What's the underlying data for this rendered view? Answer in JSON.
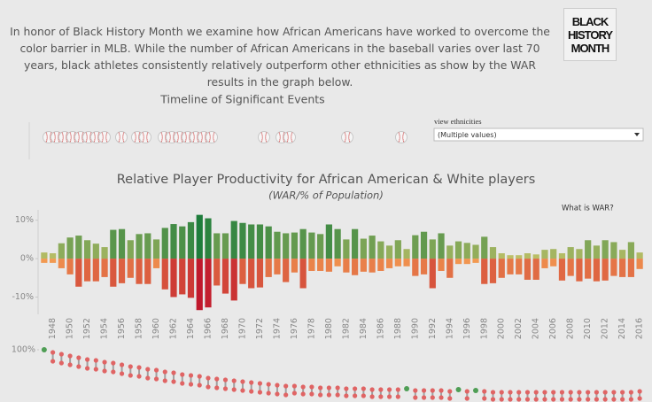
{
  "header": {
    "intro": "In honor of Black History Month we examine how African Americans have worked to overcome the color barrier in MLB. While the number of African Americans in the  baseball varies over last 70 years, black athletes consistently relatively outperform other ethnicities as show by the WAR results in the graph below.",
    "logo": [
      "BLACK",
      "HISTORY",
      "MONTH"
    ]
  },
  "timeline": {
    "title": "Timeline of Significant Events"
  },
  "filter": {
    "label": "view  ethnicities",
    "value": "(Multiple values)"
  },
  "link": "What is WAR?",
  "chart_data": [
    {
      "type": "diverging-bar",
      "title": "Relative Player Productivity for African American & White players",
      "subtitle": "(WAR/% of Population)",
      "categories": [
        null,
        "1948",
        null,
        "1950",
        null,
        "1952",
        null,
        "1954",
        null,
        "1956",
        null,
        "1958",
        null,
        "1960",
        null,
        "1962",
        null,
        "1964",
        null,
        "1966",
        null,
        "1968",
        null,
        "1970",
        null,
        "1972",
        null,
        "1974",
        null,
        "1976",
        null,
        "1978",
        null,
        "1980",
        null,
        "1982",
        null,
        "1984",
        null,
        "1986",
        null,
        "1988",
        null,
        "1990",
        null,
        "1992",
        null,
        "1994",
        null,
        "1996",
        null,
        "1998",
        null,
        "2000",
        null,
        "2002",
        null,
        "2004",
        null,
        "2006",
        null,
        "2008",
        null,
        "2010",
        null,
        "2012",
        null,
        "2014",
        null,
        "2016"
      ],
      "series": [
        {
          "colors": [
            "#c9c56b",
            "#1f7d3c"
          ],
          "values": [
            1.6,
            1.4,
            4,
            5.5,
            6,
            4.8,
            3.9,
            3,
            7.5,
            7.7,
            4.8,
            6.4,
            6.6,
            5,
            8,
            9,
            8.4,
            9.5,
            11.4,
            10.5,
            6.6,
            6.6,
            9.8,
            9.3,
            8.9,
            8.9,
            8.4,
            7,
            6.6,
            6.8,
            7.7,
            6.8,
            6.4,
            8.9,
            7.7,
            5,
            7.7,
            5.2,
            6,
            4.5,
            3.4,
            4.8,
            2.5,
            6.1,
            7,
            5,
            6.6,
            3.4,
            4.5,
            4.1,
            3.6,
            5.7,
            3,
            1.4,
            0.9,
            0.9,
            1.4,
            1.1,
            2.3,
            2.5,
            1.4,
            3,
            2.5,
            4.8,
            3.4,
            4.8,
            4.3,
            2.3,
            4.3,
            1.6
          ]
        },
        {
          "colors": [
            "#f7a454",
            "#c0182c"
          ],
          "values": [
            -1.1,
            -1.1,
            -2.5,
            -4.1,
            -7.3,
            -5.9,
            -5.9,
            -4.8,
            -7.3,
            -6.4,
            -5,
            -6.6,
            -6.6,
            -2.5,
            -8,
            -10,
            -9.3,
            -10.2,
            -13.4,
            -12.7,
            -7,
            -9.1,
            -10.9,
            -6.6,
            -7.7,
            -7.5,
            -4.8,
            -4.1,
            -6.1,
            -3.6,
            -7.7,
            -3.2,
            -3.2,
            -3.4,
            -2,
            -3.6,
            -4.3,
            -3.4,
            -3.6,
            -3.2,
            -2.5,
            -2,
            -2,
            -4.5,
            -4.1,
            -7.7,
            -3.2,
            -5,
            -1.4,
            -1.4,
            -1.1,
            -6.6,
            -6.4,
            -5,
            -4.1,
            -4.1,
            -5.5,
            -5.5,
            -2.5,
            -2,
            -5.7,
            -4.5,
            -5.9,
            -5.2,
            -5.9,
            -5.7,
            -4.5,
            -4.8,
            -4.8,
            -2.7
          ]
        }
      ],
      "ylim": [
        -14.5,
        12.7
      ],
      "yticks": [
        {
          "value": 10,
          "label": "10%"
        },
        {
          "value": 0,
          "label": "0%"
        },
        {
          "value": -10,
          "label": "-10%"
        }
      ]
    },
    {
      "type": "dumbbell",
      "series": [
        {
          "color": "#e06464",
          "values": [
            100,
            98.5,
            97.5,
            96.5,
            95.5,
            94.5,
            94,
            93,
            92.5,
            91.5,
            90.5,
            90,
            89,
            88.5,
            87.5,
            87,
            86,
            85.5,
            85,
            84,
            83.5,
            83,
            82.5,
            82,
            81.5,
            81,
            80.5,
            80,
            79.5,
            79.5,
            79,
            79,
            78.5,
            78.5,
            78.5,
            78,
            78,
            78,
            77.5,
            77.5,
            77.5,
            77.5,
            78,
            77,
            77,
            77,
            77,
            76.5,
            77.5,
            76.5,
            77,
            76.5,
            76,
            76,
            76,
            76,
            76,
            76,
            76,
            76,
            76,
            76,
            76,
            76,
            76,
            76,
            76,
            76,
            76,
            76.5
          ]
        },
        {
          "color": "#e06464",
          "values": [
            100,
            93.5,
            92.5,
            91.5,
            90.5,
            89.5,
            89,
            88,
            87.5,
            86.5,
            85.5,
            85,
            84,
            83.5,
            82.5,
            82,
            81,
            80.5,
            80,
            79,
            78.5,
            78,
            77.5,
            77,
            76.5,
            76,
            75.5,
            75,
            74.5,
            75.5,
            75,
            75,
            74.5,
            74.5,
            74.5,
            74,
            74,
            74,
            73.5,
            73.5,
            73.5,
            73.5,
            78,
            73,
            73,
            73,
            73,
            72.5,
            77.5,
            72.5,
            77,
            72.5,
            72,
            72,
            72,
            72,
            72,
            72,
            72,
            72,
            72,
            72,
            72,
            72,
            72,
            72,
            72,
            72,
            72,
            72.5
          ]
        }
      ],
      "connector_color": "#a0a0a0",
      "equal_color": "#4f9e55",
      "ylim": [
        70,
        100
      ],
      "yticks": [
        {
          "value": 100,
          "label": "100%"
        }
      ]
    }
  ]
}
